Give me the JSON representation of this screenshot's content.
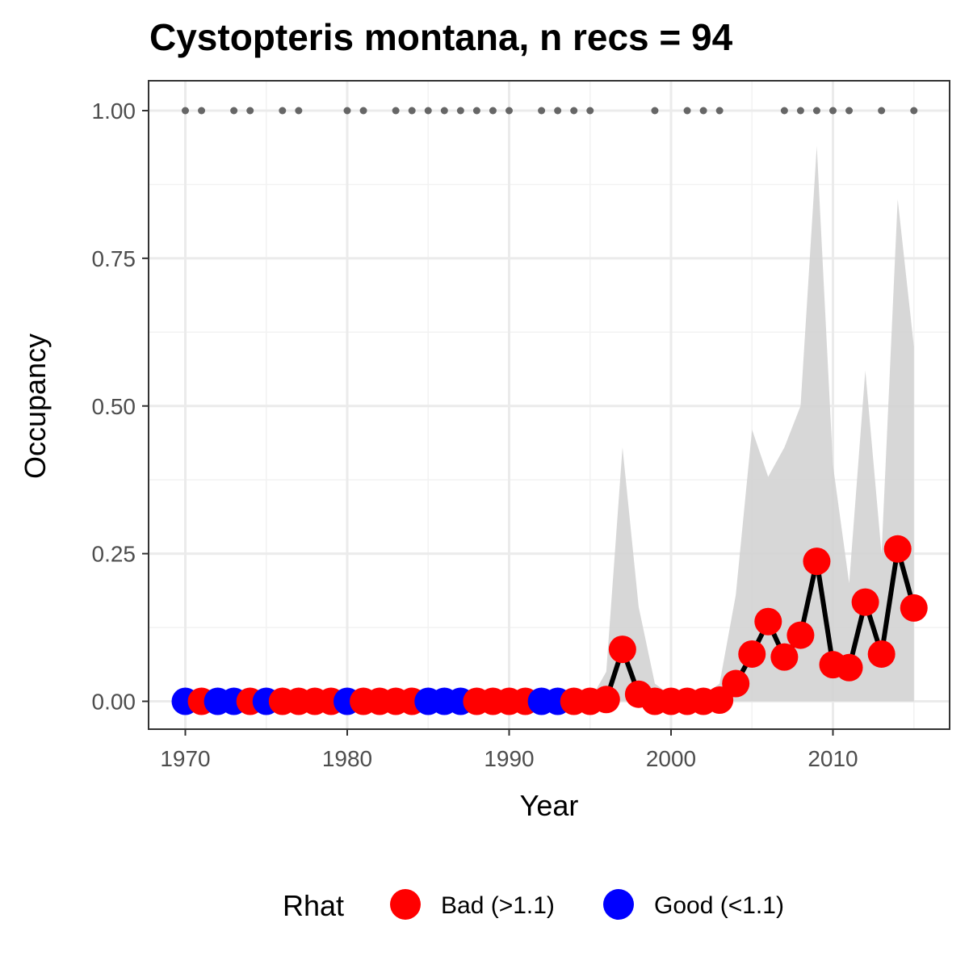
{
  "chart_data": {
    "type": "line",
    "title": "Cystopteris montana, n recs = 94",
    "xlabel": "Year",
    "ylabel": "Occupancy",
    "xlim": [
      1968.8,
      2017.2
    ],
    "ylim": [
      -0.045,
      1.05
    ],
    "x_ticks": [
      "1970",
      "1980",
      "1990",
      "2000",
      "2010"
    ],
    "y_ticks": [
      "0.00",
      "0.25",
      "0.50",
      "0.75",
      "1.00"
    ],
    "grid": true,
    "legend": {
      "title": "Rhat",
      "position": "bottom",
      "entries": [
        {
          "label": "Bad (>1.1)",
          "color": "#ff0000"
        },
        {
          "label": "Good (<1.1)",
          "color": "#0000ff"
        }
      ]
    },
    "colors": {
      "bad": "#ff0000",
      "good": "#0000ff",
      "line": "#000000",
      "ribbon": "#d3d3d3",
      "record_dots": "#666666"
    },
    "years": [
      1970,
      1971,
      1972,
      1973,
      1974,
      1975,
      1976,
      1977,
      1978,
      1979,
      1980,
      1981,
      1982,
      1983,
      1984,
      1985,
      1986,
      1987,
      1988,
      1989,
      1990,
      1991,
      1992,
      1993,
      1994,
      1995,
      1996,
      1997,
      1998,
      1999,
      2000,
      2001,
      2002,
      2003,
      2004,
      2005,
      2006,
      2007,
      2008,
      2009,
      2010,
      2011,
      2012,
      2013,
      2014,
      2015
    ],
    "occupancy": [
      0,
      0,
      0,
      0,
      0,
      0,
      0,
      0,
      0,
      0,
      0,
      0,
      0,
      0,
      0,
      0,
      0,
      0,
      0,
      0,
      0,
      0,
      0,
      0,
      0,
      0,
      0.003,
      0.088,
      0.012,
      0,
      0,
      0,
      0,
      0.002,
      0.03,
      0.08,
      0.135,
      0.075,
      0.112,
      0.237,
      0.062,
      0.057,
      0.168,
      0.08,
      0.258,
      0.158
    ],
    "lower": [
      0,
      0,
      0,
      0,
      0,
      0,
      0,
      0,
      0,
      0,
      0,
      0,
      0,
      0,
      0,
      0,
      0,
      0,
      0,
      0,
      0,
      0,
      0,
      0,
      0,
      0,
      0,
      0,
      0,
      0,
      0,
      0,
      0,
      0,
      0,
      0,
      0,
      0,
      0,
      0,
      0,
      0,
      0,
      0,
      0,
      0
    ],
    "upper": [
      0,
      0,
      0,
      0,
      0,
      0,
      0,
      0,
      0,
      0,
      0,
      0,
      0,
      0,
      0,
      0,
      0.002,
      0.002,
      0.002,
      0.002,
      0.002,
      0.002,
      0.002,
      0.002,
      0.002,
      0.002,
      0.05,
      0.43,
      0.16,
      0.03,
      0.01,
      0.01,
      0.01,
      0.03,
      0.18,
      0.46,
      0.38,
      0.43,
      0.5,
      0.94,
      0.4,
      0.2,
      0.56,
      0.25,
      0.85,
      0.6
    ],
    "rhat_status": [
      "good",
      "bad",
      "good",
      "good",
      "bad",
      "good",
      "bad",
      "bad",
      "bad",
      "bad",
      "good",
      "bad",
      "bad",
      "bad",
      "bad",
      "good",
      "good",
      "good",
      "bad",
      "bad",
      "bad",
      "bad",
      "good",
      "good",
      "bad",
      "bad",
      "bad",
      "bad",
      "bad",
      "bad",
      "bad",
      "bad",
      "bad",
      "bad",
      "bad",
      "bad",
      "bad",
      "bad",
      "bad",
      "bad",
      "bad",
      "bad",
      "bad",
      "bad",
      "bad",
      "bad"
    ],
    "record_years": [
      1970,
      1971,
      1973,
      1974,
      1976,
      1977,
      1980,
      1981,
      1983,
      1984,
      1985,
      1986,
      1987,
      1988,
      1989,
      1990,
      1992,
      1993,
      1994,
      1995,
      1999,
      2001,
      2002,
      2003,
      2007,
      2008,
      2009,
      2010,
      2011,
      2013,
      2015
    ]
  }
}
